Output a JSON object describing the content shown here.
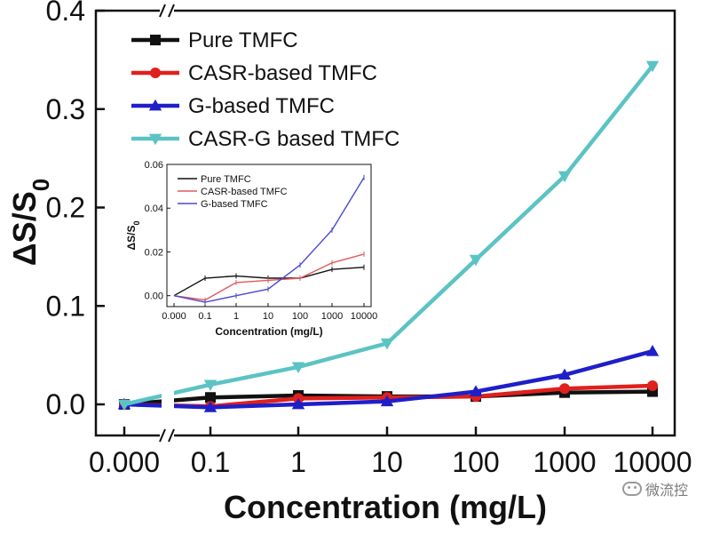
{
  "chart_data": [
    {
      "type": "line",
      "xlabel": "Concentration (mg/L)",
      "ylabel": "ΔS/S0",
      "ylim": [
        0,
        0.4
      ],
      "yticks": [
        "0.0",
        "0.1",
        "0.2",
        "0.3",
        "0.4"
      ],
      "categories": [
        "0.000",
        "0.1",
        "1",
        "10",
        "100",
        "1000",
        "10000"
      ],
      "grid": false,
      "legend_position": "top-left",
      "series": [
        {
          "name": "Pure TMFC",
          "color": "#111111",
          "marker": "square",
          "values": [
            0.0,
            0.007,
            0.009,
            0.008,
            0.008,
            0.012,
            0.013
          ]
        },
        {
          "name": "CASR-based TMFC",
          "color": "#e0201c",
          "marker": "circle",
          "values": [
            0.0,
            -0.002,
            0.006,
            0.007,
            0.008,
            0.016,
            0.019
          ]
        },
        {
          "name": "G-based TMFC",
          "color": "#1f1fc8",
          "marker": "triangle-up",
          "values": [
            0.0,
            -0.003,
            0.0,
            0.003,
            0.013,
            0.03,
            0.054
          ]
        },
        {
          "name": "CASR-G based TMFC",
          "color": "#5cc3c4",
          "marker": "triangle-down",
          "values": [
            0.0,
            0.02,
            0.038,
            0.062,
            0.147,
            0.232,
            0.344
          ]
        }
      ]
    },
    {
      "type": "line",
      "xlabel": "Concentration (mg/L)",
      "ylabel": "ΔS/S0",
      "ylim": [
        -0.005,
        0.06
      ],
      "yticks": [
        "0.00",
        "0.02",
        "0.04",
        "0.06"
      ],
      "categories": [
        "0.000",
        "0.1",
        "1",
        "10",
        "100",
        "1000",
        "10000"
      ],
      "legend_position": "top-left",
      "series": [
        {
          "name": "Pure TMFC",
          "color": "#111111",
          "values": [
            0.0,
            0.008,
            0.009,
            0.008,
            0.008,
            0.012,
            0.013
          ]
        },
        {
          "name": "CASR-based TMFC",
          "color": "#e05a5a",
          "values": [
            0.0,
            -0.002,
            0.006,
            0.007,
            0.008,
            0.015,
            0.019
          ]
        },
        {
          "name": "G-based TMFC",
          "color": "#4a4ad0",
          "values": [
            0.0,
            -0.003,
            0.0,
            0.003,
            0.014,
            0.03,
            0.054
          ]
        }
      ]
    }
  ],
  "watermark": {
    "text": "微流控",
    "icon": "wechat-icon"
  }
}
